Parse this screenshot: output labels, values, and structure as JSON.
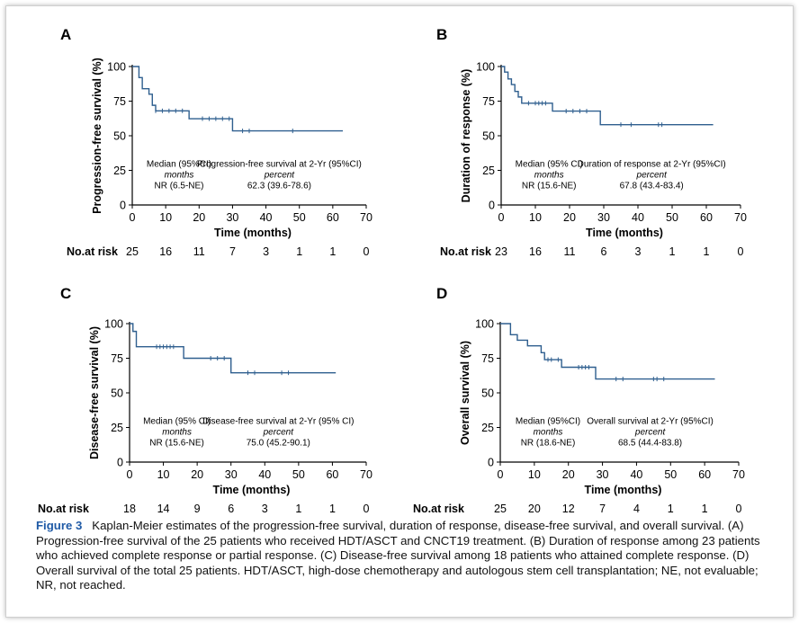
{
  "caption": {
    "label": "Figure 3",
    "text": "Kaplan-Meier estimates of the progression-free survival, duration of response, disease-free survival, and overall survival. (A) Progression-free survival of the 25 patients who received HDT/ASCT and CNCT19 treatment. (B) Duration of response among 23 patients who achieved complete response or partial response. (C) Disease-free survival among 18 patients who attained complete response. (D) Overall survival of the total 25 patients. HDT/ASCT, high-dose chemotherapy and autologous stem cell transplantation; NE, not evaluable; NR, not reached."
  },
  "colors": {
    "curve": "#2f5f8f",
    "axis": "#000000",
    "caption_label": "#1f5aa6"
  },
  "chart_data": [
    {
      "panel": "A",
      "type": "line",
      "ylabel": "Progression-free survival (%)",
      "xlabel": "Time (months)",
      "xlim": [
        0,
        70
      ],
      "ylim": [
        0,
        100
      ],
      "xticks": [
        "0",
        "10",
        "20",
        "30",
        "40",
        "50",
        "60",
        "70"
      ],
      "yticks": [
        "0",
        "25",
        "50",
        "75",
        "100"
      ],
      "step_x": [
        0,
        2,
        3,
        5,
        6,
        7,
        17,
        30,
        63
      ],
      "step_y": [
        100,
        92,
        84,
        80,
        72,
        68,
        62.3,
        53.5,
        53.5
      ],
      "censor_x": [
        7,
        9,
        11,
        13,
        15,
        21,
        23,
        25,
        27,
        29,
        33,
        35,
        48
      ],
      "median": {
        "line1": "Median (95%CI)",
        "line2": "months",
        "line3": "NR (6.5-NE)"
      },
      "at2yr": {
        "line1": "Progression-free survival at 2-Yr (95%CI)",
        "line2": "percent",
        "line3": "62.3 (39.6-78.6)"
      },
      "risk_label": "No.at risk",
      "risk": [
        "25",
        "16",
        "11",
        "7",
        "3",
        "1",
        "1",
        "0"
      ]
    },
    {
      "panel": "B",
      "type": "line",
      "ylabel": "Duration of response (%)",
      "xlabel": "Time (months)",
      "xlim": [
        0,
        70
      ],
      "ylim": [
        0,
        100
      ],
      "xticks": [
        "0",
        "10",
        "20",
        "30",
        "40",
        "50",
        "60",
        "70"
      ],
      "yticks": [
        "0",
        "25",
        "50",
        "75",
        "100"
      ],
      "step_x": [
        0,
        1,
        2,
        3,
        4,
        5,
        6,
        15,
        29,
        62
      ],
      "step_y": [
        100,
        96,
        91,
        87,
        82,
        78,
        73.5,
        67.8,
        58,
        58
      ],
      "censor_x": [
        8,
        10,
        11,
        12,
        13,
        19,
        21,
        23,
        25,
        35,
        38,
        46,
        47
      ],
      "median": {
        "line1": "Median (95% CI)",
        "line2": "months",
        "line3": "NR (15.6-NE)"
      },
      "at2yr": {
        "line1": "Duration of response at 2-Yr (95%CI)",
        "line2": "percent",
        "line3": "67.8 (43.4-83.4)"
      },
      "risk_label": "No.at risk",
      "risk": [
        "23",
        "16",
        "11",
        "6",
        "3",
        "1",
        "1",
        "0"
      ]
    },
    {
      "panel": "C",
      "type": "line",
      "ylabel": "Disease-free survival (%)",
      "xlabel": "Time (months)",
      "xlim": [
        0,
        70
      ],
      "ylim": [
        0,
        100
      ],
      "xticks": [
        "0",
        "10",
        "20",
        "30",
        "40",
        "50",
        "60",
        "70"
      ],
      "yticks": [
        "0",
        "25",
        "50",
        "75",
        "100"
      ],
      "step_x": [
        0,
        1,
        2,
        16,
        30,
        61
      ],
      "step_y": [
        100,
        94.4,
        83.3,
        75,
        64.5,
        64.5
      ],
      "censor_x": [
        8,
        9,
        10,
        11,
        12,
        13,
        24,
        26,
        28,
        35,
        37,
        45,
        47
      ],
      "median": {
        "line1": "Median (95% CI)",
        "line2": "months",
        "line3": "NR (15.6-NE)"
      },
      "at2yr": {
        "line1": "Disease-free survival at 2-Yr (95% CI)",
        "line2": "percent",
        "line3": "75.0 (45.2-90.1)"
      },
      "risk_label": "No.at risk",
      "risk": [
        "18",
        "14",
        "9",
        "6",
        "3",
        "1",
        "1",
        "0"
      ]
    },
    {
      "panel": "D",
      "type": "line",
      "ylabel": "Overall survival (%)",
      "xlabel": "Time (months)",
      "xlim": [
        0,
        70
      ],
      "ylim": [
        0,
        100
      ],
      "xticks": [
        "0",
        "10",
        "20",
        "30",
        "40",
        "50",
        "60",
        "70"
      ],
      "yticks": [
        "0",
        "25",
        "50",
        "75",
        "100"
      ],
      "step_x": [
        0,
        3,
        5,
        8,
        12,
        13,
        18,
        28,
        63
      ],
      "step_y": [
        100,
        92,
        88,
        84,
        79,
        74,
        68.5,
        60,
        60
      ],
      "censor_x": [
        14,
        15,
        17,
        23,
        24,
        25,
        26,
        34,
        36,
        45,
        46,
        48
      ],
      "median": {
        "line1": "Median (95%CI)",
        "line2": "months",
        "line3": "NR (18.6-NE)"
      },
      "at2yr": {
        "line1": "Overall survival at 2-Yr (95%CI)",
        "line2": "percent",
        "line3": "68.5 (44.4-83.8)"
      },
      "risk_label": "No.at risk",
      "risk": [
        "25",
        "20",
        "12",
        "7",
        "4",
        "1",
        "1",
        "0"
      ]
    }
  ]
}
